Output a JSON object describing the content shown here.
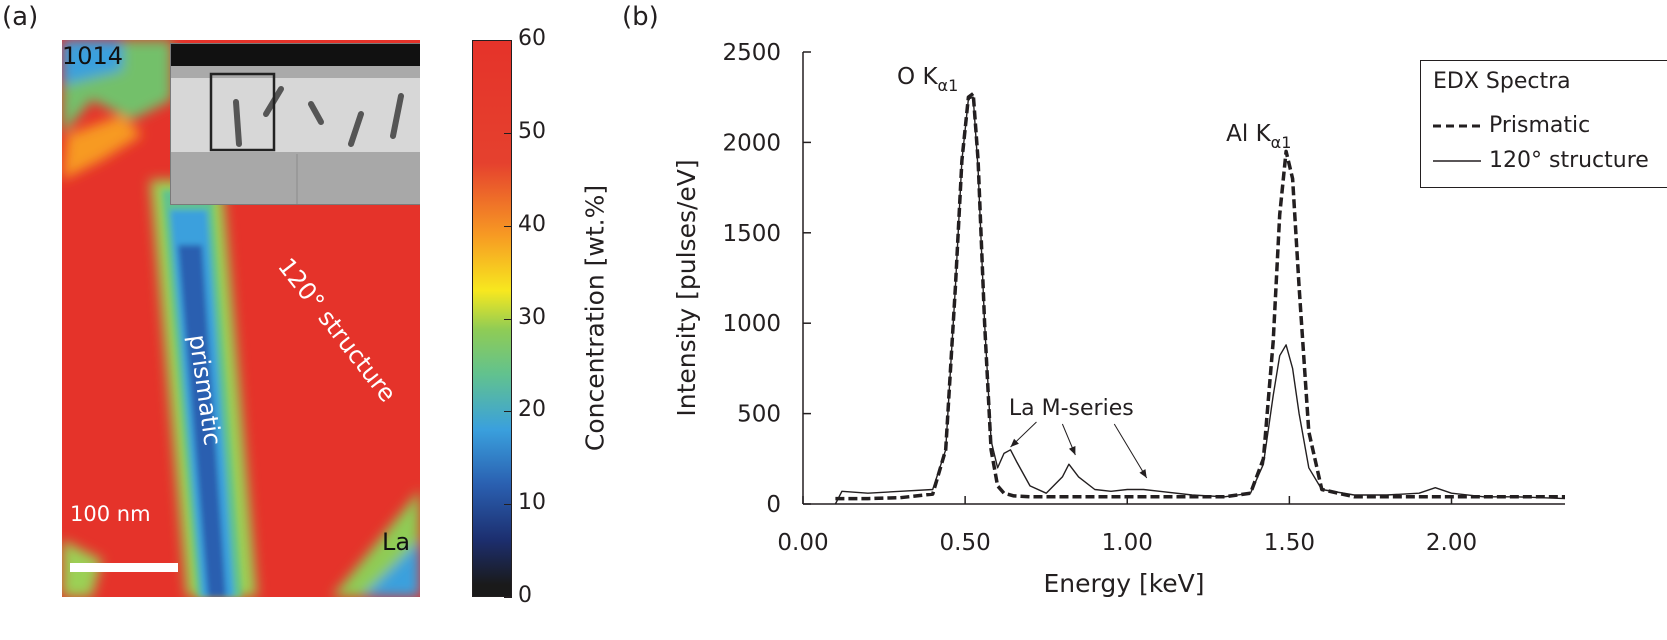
{
  "panel_a": {
    "label": "(a)",
    "sample_id": "1014",
    "element": "La",
    "scale_bar": "100 nm",
    "region_prismatic": "prismatic",
    "region_120": "120° structure",
    "colorbar": {
      "title": "Concentration [wt.%]",
      "ticks": [
        "0",
        "10",
        "20",
        "30",
        "40",
        "50",
        "60"
      ],
      "min": 0,
      "max": 60
    }
  },
  "panel_b": {
    "label": "(b)"
  },
  "chart_data": {
    "type": "line",
    "title": "",
    "xlabel": "Energy [keV]",
    "ylabel": "Intensity [pulses/eV]",
    "xlim": [
      0.0,
      2.35
    ],
    "ylim": [
      0,
      2500
    ],
    "xticks": [
      "0.00",
      "0.50",
      "1.00",
      "1.50",
      "2.00"
    ],
    "xtick_values": [
      0.0,
      0.5,
      1.0,
      1.5,
      2.0
    ],
    "yticks": [
      "0",
      "500",
      "1000",
      "1500",
      "2000",
      "2500"
    ],
    "ytick_values": [
      0,
      500,
      1000,
      1500,
      2000,
      2500
    ],
    "legend_title": "EDX Spectra",
    "series": [
      {
        "name": "Prismatic",
        "style": "dashed",
        "x": [
          0.1,
          0.2,
          0.3,
          0.4,
          0.44,
          0.47,
          0.49,
          0.51,
          0.525,
          0.54,
          0.56,
          0.58,
          0.6,
          0.62,
          0.65,
          0.7,
          0.8,
          0.9,
          1.0,
          1.1,
          1.2,
          1.3,
          1.38,
          1.42,
          1.45,
          1.47,
          1.49,
          1.51,
          1.53,
          1.56,
          1.6,
          1.7,
          1.8,
          1.9,
          2.0,
          2.1,
          2.2,
          2.35
        ],
        "values": [
          30,
          30,
          35,
          55,
          300,
          1200,
          1900,
          2250,
          2270,
          1900,
          1000,
          300,
          100,
          60,
          45,
          40,
          40,
          40,
          40,
          40,
          40,
          40,
          60,
          250,
          900,
          1600,
          1950,
          1800,
          1200,
          400,
          80,
          40,
          40,
          40,
          40,
          40,
          40,
          40
        ]
      },
      {
        "name": "120° structure",
        "style": "solid",
        "x": [
          0.1,
          0.12,
          0.2,
          0.3,
          0.4,
          0.44,
          0.47,
          0.49,
          0.51,
          0.525,
          0.54,
          0.56,
          0.58,
          0.6,
          0.62,
          0.64,
          0.66,
          0.7,
          0.75,
          0.8,
          0.82,
          0.85,
          0.9,
          0.95,
          1.0,
          1.05,
          1.1,
          1.2,
          1.3,
          1.38,
          1.42,
          1.45,
          1.47,
          1.49,
          1.51,
          1.53,
          1.56,
          1.6,
          1.7,
          1.8,
          1.9,
          1.95,
          2.0,
          2.1,
          2.2,
          2.35
        ],
        "values": [
          0,
          70,
          60,
          70,
          80,
          300,
          1200,
          1900,
          2240,
          2250,
          1850,
          1000,
          350,
          200,
          280,
          300,
          230,
          100,
          60,
          150,
          220,
          150,
          80,
          70,
          80,
          80,
          70,
          50,
          40,
          60,
          220,
          600,
          820,
          880,
          750,
          500,
          200,
          80,
          50,
          50,
          60,
          90,
          60,
          40,
          40,
          30
        ]
      }
    ],
    "annotations": [
      "O Kα1",
      "Al Kα1",
      "La M-series"
    ]
  }
}
